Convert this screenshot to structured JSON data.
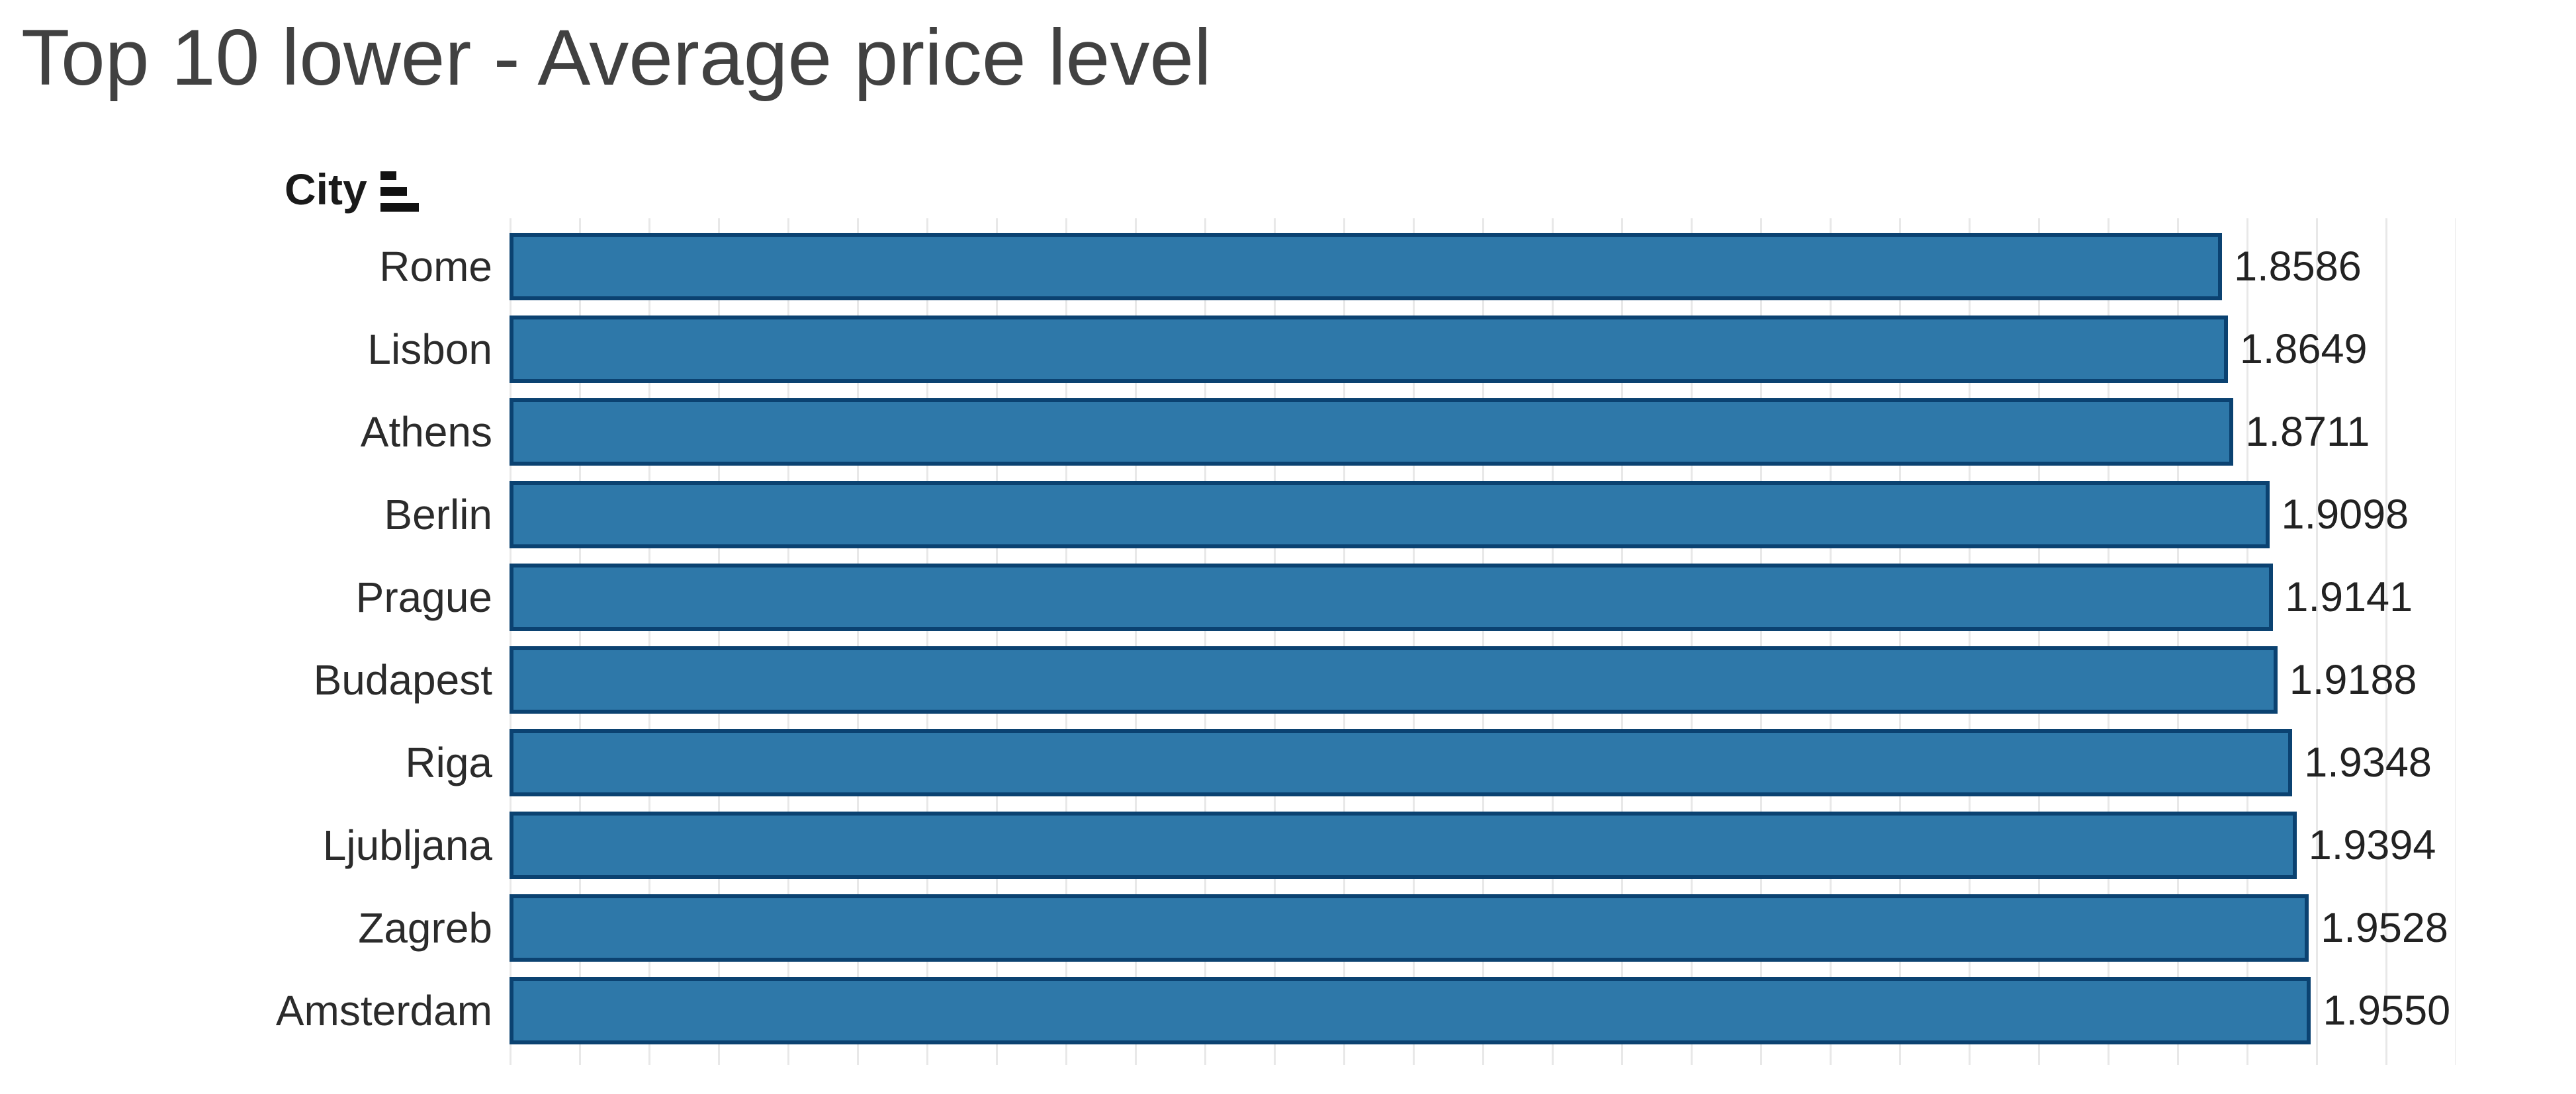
{
  "title": "Top 10 lower - Average price level",
  "header": {
    "field_label": "City",
    "sort_icon": "sort-ascending-icon"
  },
  "colors": {
    "bar_fill": "#2e78a9",
    "bar_border": "#0b4271",
    "gridline": "#e8e8e8",
    "title_text": "#414141",
    "label_text": "#2b2b2b"
  },
  "chart_data": {
    "type": "bar",
    "orientation": "horizontal",
    "title": "Top 10 lower - Average price level",
    "categories": [
      "Rome",
      "Lisbon",
      "Athens",
      "Berlin",
      "Prague",
      "Budapest",
      "Riga",
      "Ljubljana",
      "Zagreb",
      "Amsterdam"
    ],
    "values": [
      1.8586,
      1.8649,
      1.8711,
      1.9098,
      1.9141,
      1.9188,
      1.9348,
      1.9394,
      1.9528,
      1.955
    ],
    "value_labels": [
      "1.8586",
      "1.8649",
      "1.8711",
      "1.9098",
      "1.9141",
      "1.9188",
      "1.9348",
      "1.9394",
      "1.9528",
      "1.9550"
    ],
    "xlabel": "",
    "ylabel": "City",
    "xlim": [
      0,
      2.112
    ],
    "grid": true,
    "legend": "none",
    "sort": "ascending by value"
  }
}
